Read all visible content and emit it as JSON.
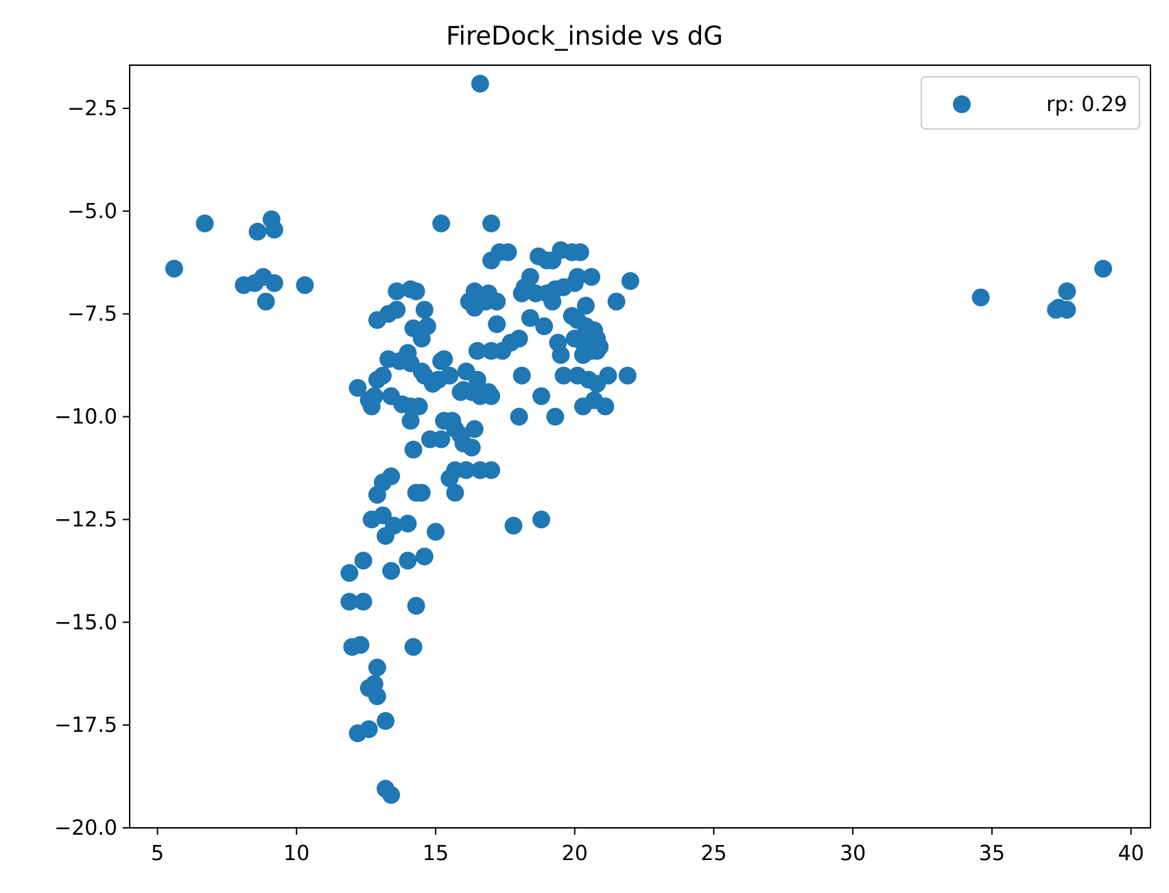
{
  "chart_data": {
    "type": "scatter",
    "title": "FireDock_inside vs dG",
    "xlabel": "",
    "ylabel": "",
    "xlim": [
      4.0,
      40.7
    ],
    "ylim": [
      -20.0,
      -1.45
    ],
    "xticks": [
      5,
      10,
      15,
      20,
      25,
      30,
      35,
      40
    ],
    "xtick_labels": [
      "5",
      "10",
      "15",
      "20",
      "25",
      "30",
      "35",
      "40"
    ],
    "yticks": [
      -20.0,
      -17.5,
      -15.0,
      -12.5,
      -10.0,
      -7.5,
      -5.0,
      -2.5
    ],
    "ytick_labels": [
      "−20.0",
      "−17.5",
      "−15.0",
      "−12.5",
      "−10.0",
      "−7.5",
      "−5.0",
      "−2.5"
    ],
    "grid": false,
    "legend_position": "top-right",
    "color": "#1f77b4",
    "series": [
      {
        "name": "rp: 0.29",
        "points": [
          [
            5.6,
            -6.4
          ],
          [
            6.7,
            -5.3
          ],
          [
            8.1,
            -6.8
          ],
          [
            8.5,
            -6.75
          ],
          [
            8.6,
            -5.5
          ],
          [
            8.8,
            -6.6
          ],
          [
            8.9,
            -7.2
          ],
          [
            9.1,
            -5.2
          ],
          [
            9.2,
            -5.45
          ],
          [
            9.2,
            -6.75
          ],
          [
            10.3,
            -6.8
          ],
          [
            16.6,
            -1.9
          ],
          [
            15.2,
            -5.3
          ],
          [
            17.0,
            -5.3
          ],
          [
            17.0,
            -6.2
          ],
          [
            17.3,
            -6.0
          ],
          [
            17.6,
            -6.0
          ],
          [
            18.7,
            -6.1
          ],
          [
            19.0,
            -6.2
          ],
          [
            19.2,
            -6.2
          ],
          [
            19.5,
            -5.95
          ],
          [
            19.9,
            -6.0
          ],
          [
            20.2,
            -6.0
          ],
          [
            22.0,
            -6.7
          ],
          [
            20.6,
            -6.6
          ],
          [
            20.1,
            -6.6
          ],
          [
            18.4,
            -6.6
          ],
          [
            18.2,
            -6.85
          ],
          [
            18.1,
            -7.0
          ],
          [
            18.6,
            -7.0
          ],
          [
            19.0,
            -7.0
          ],
          [
            19.3,
            -6.9
          ],
          [
            19.6,
            -6.85
          ],
          [
            20.0,
            -6.75
          ],
          [
            16.4,
            -6.95
          ],
          [
            16.9,
            -7.0
          ],
          [
            16.2,
            -7.2
          ],
          [
            16.5,
            -7.1
          ],
          [
            16.8,
            -7.2
          ],
          [
            17.2,
            -7.2
          ],
          [
            16.4,
            -7.35
          ],
          [
            19.2,
            -7.2
          ],
          [
            20.4,
            -7.3
          ],
          [
            21.5,
            -7.2
          ],
          [
            19.9,
            -7.55
          ],
          [
            20.1,
            -7.65
          ],
          [
            18.4,
            -7.6
          ],
          [
            17.2,
            -7.75
          ],
          [
            18.9,
            -7.8
          ],
          [
            14.1,
            -6.9
          ],
          [
            14.3,
            -6.95
          ],
          [
            13.6,
            -6.95
          ],
          [
            13.6,
            -7.4
          ],
          [
            13.3,
            -7.5
          ],
          [
            12.9,
            -7.65
          ],
          [
            14.6,
            -7.4
          ],
          [
            14.7,
            -7.8
          ],
          [
            14.2,
            -7.85
          ],
          [
            14.5,
            -8.1
          ],
          [
            20.4,
            -7.8
          ],
          [
            20.7,
            -7.9
          ],
          [
            20.8,
            -8.1
          ],
          [
            20.0,
            -8.1
          ],
          [
            20.3,
            -8.2
          ],
          [
            19.4,
            -8.2
          ],
          [
            20.9,
            -8.3
          ],
          [
            20.8,
            -8.4
          ],
          [
            20.3,
            -8.5
          ],
          [
            19.5,
            -8.5
          ],
          [
            20.6,
            -8.4
          ],
          [
            18.0,
            -8.1
          ],
          [
            17.7,
            -8.2
          ],
          [
            17.4,
            -8.4
          ],
          [
            16.5,
            -8.4
          ],
          [
            17.0,
            -8.4
          ],
          [
            14.0,
            -8.45
          ],
          [
            13.3,
            -8.6
          ],
          [
            13.7,
            -8.65
          ],
          [
            14.1,
            -8.7
          ],
          [
            15.2,
            -8.65
          ],
          [
            15.3,
            -8.6
          ],
          [
            14.5,
            -8.9
          ],
          [
            14.6,
            -9.0
          ],
          [
            15.1,
            -9.1
          ],
          [
            14.9,
            -9.2
          ],
          [
            13.1,
            -9.0
          ],
          [
            12.9,
            -9.1
          ],
          [
            12.2,
            -9.3
          ],
          [
            16.1,
            -8.9
          ],
          [
            16.5,
            -9.1
          ],
          [
            16.0,
            -9.35
          ],
          [
            16.3,
            -9.4
          ],
          [
            16.7,
            -9.4
          ],
          [
            16.9,
            -9.4
          ],
          [
            17.0,
            -9.5
          ],
          [
            16.6,
            -9.5
          ],
          [
            15.9,
            -9.4
          ],
          [
            15.5,
            -9.0
          ],
          [
            18.1,
            -9.0
          ],
          [
            19.6,
            -9.0
          ],
          [
            20.1,
            -9.0
          ],
          [
            20.5,
            -9.1
          ],
          [
            20.8,
            -9.2
          ],
          [
            21.2,
            -9.0
          ],
          [
            21.9,
            -9.0
          ],
          [
            18.8,
            -9.5
          ],
          [
            20.3,
            -9.75
          ],
          [
            20.7,
            -9.6
          ],
          [
            21.1,
            -9.75
          ],
          [
            19.3,
            -10.0
          ],
          [
            18.0,
            -10.0
          ],
          [
            12.6,
            -9.6
          ],
          [
            12.8,
            -9.5
          ],
          [
            13.4,
            -9.5
          ],
          [
            12.7,
            -9.75
          ],
          [
            13.8,
            -9.7
          ],
          [
            14.1,
            -9.75
          ],
          [
            14.4,
            -9.75
          ],
          [
            14.1,
            -10.1
          ],
          [
            15.3,
            -10.1
          ],
          [
            15.6,
            -10.1
          ],
          [
            15.7,
            -10.3
          ],
          [
            15.2,
            -10.55
          ],
          [
            14.8,
            -10.55
          ],
          [
            15.9,
            -10.45
          ],
          [
            16.0,
            -10.65
          ],
          [
            16.4,
            -10.3
          ],
          [
            16.3,
            -10.75
          ],
          [
            14.2,
            -10.8
          ],
          [
            16.1,
            -11.3
          ],
          [
            15.7,
            -11.3
          ],
          [
            15.5,
            -11.5
          ],
          [
            16.6,
            -11.3
          ],
          [
            17.0,
            -11.3
          ],
          [
            15.7,
            -11.85
          ],
          [
            13.4,
            -11.45
          ],
          [
            13.1,
            -11.6
          ],
          [
            12.9,
            -11.9
          ],
          [
            14.3,
            -11.85
          ],
          [
            14.5,
            -11.85
          ],
          [
            12.7,
            -12.5
          ],
          [
            13.1,
            -12.4
          ],
          [
            13.5,
            -12.65
          ],
          [
            14.0,
            -12.6
          ],
          [
            13.2,
            -12.9
          ],
          [
            15.0,
            -12.8
          ],
          [
            17.8,
            -12.65
          ],
          [
            18.8,
            -12.5
          ],
          [
            12.4,
            -13.5
          ],
          [
            11.9,
            -13.8
          ],
          [
            13.4,
            -13.75
          ],
          [
            14.0,
            -13.5
          ],
          [
            14.6,
            -13.4
          ],
          [
            11.9,
            -14.5
          ],
          [
            12.4,
            -14.5
          ],
          [
            14.3,
            -14.6
          ],
          [
            12.0,
            -15.6
          ],
          [
            12.3,
            -15.55
          ],
          [
            14.2,
            -15.6
          ],
          [
            12.9,
            -16.1
          ],
          [
            12.6,
            -16.6
          ],
          [
            12.8,
            -16.5
          ],
          [
            12.9,
            -16.8
          ],
          [
            12.2,
            -17.7
          ],
          [
            12.6,
            -17.6
          ],
          [
            13.2,
            -17.4
          ],
          [
            13.2,
            -19.05
          ],
          [
            13.4,
            -19.2
          ],
          [
            34.6,
            -7.1
          ],
          [
            37.3,
            -7.4
          ],
          [
            37.4,
            -7.35
          ],
          [
            37.7,
            -7.4
          ],
          [
            37.7,
            -6.95
          ],
          [
            39.0,
            -6.4
          ]
        ]
      }
    ]
  }
}
